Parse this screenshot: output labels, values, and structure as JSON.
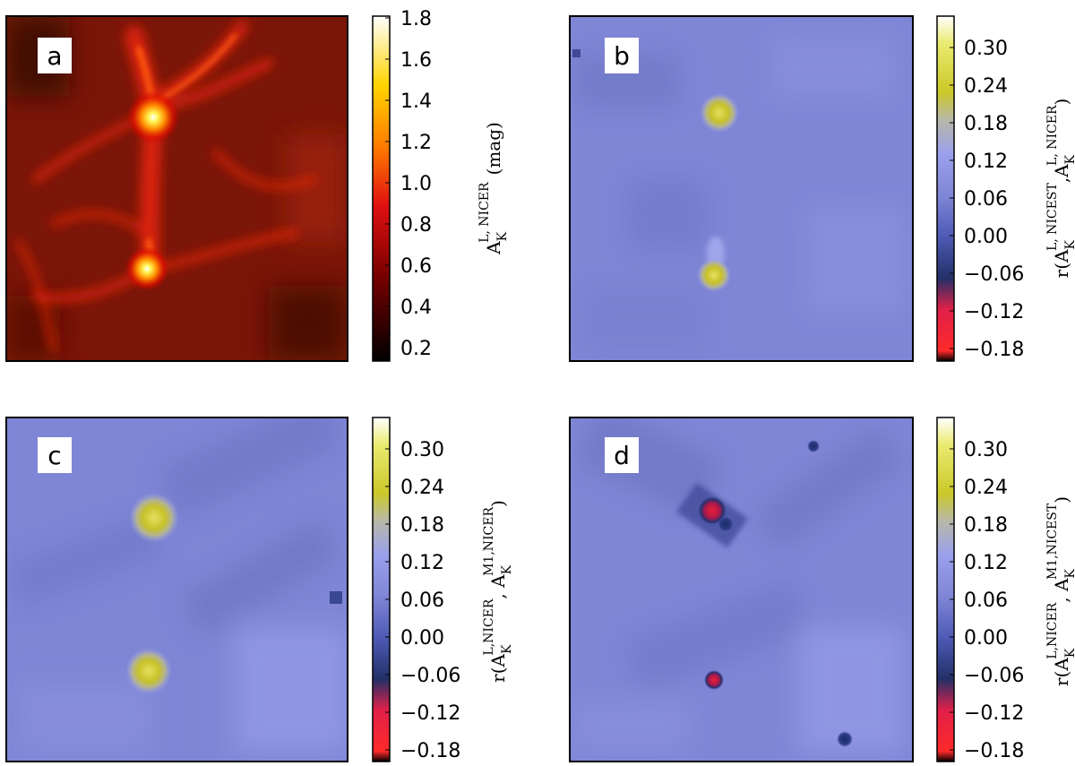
{
  "chart_data": [
    {
      "panel": "a",
      "type": "heatmap",
      "map": "extinction",
      "colormap": "hot",
      "colorbar": {
        "ticks": [
          "0.2",
          "0.4",
          "0.6",
          "0.8",
          "1.0",
          "1.2",
          "1.4",
          "1.6",
          "1.8"
        ],
        "range": [
          0.15,
          1.8
        ],
        "label": "A_K^{L, NICER} (mag)"
      },
      "features": [
        {
          "kind": "core",
          "x": 0.43,
          "y": 0.7,
          "value": 1.75
        },
        {
          "kind": "core",
          "x": 0.42,
          "y": 0.24,
          "value": 1.55
        },
        {
          "kind": "filament",
          "value": 0.9
        }
      ]
    },
    {
      "panel": "b",
      "type": "heatmap",
      "map": "correlation",
      "colormap": "gist_stern-like",
      "colorbar": {
        "ticks": [
          "0.30",
          "0.24",
          "0.18",
          "0.12",
          "0.06",
          "0.00",
          "−0.06",
          "−0.12",
          "−0.18"
        ],
        "range": [
          -0.21,
          0.34
        ],
        "label": "r(A_K^{L, NICEST}, A_K^{L, NICER})"
      },
      "background_value": 0.05,
      "features": [
        {
          "kind": "peak",
          "x": 0.44,
          "y": 0.7,
          "value": 0.22
        },
        {
          "kind": "peak",
          "x": 0.43,
          "y": 0.24,
          "value": 0.22
        }
      ]
    },
    {
      "panel": "c",
      "type": "heatmap",
      "map": "correlation",
      "colormap": "gist_stern-like",
      "colorbar": {
        "ticks": [
          "0.30",
          "0.24",
          "0.18",
          "0.12",
          "0.06",
          "0.00",
          "−0.06",
          "−0.12",
          "−0.18"
        ],
        "range": [
          -0.21,
          0.34
        ],
        "label": "r(A_K^{L,NICER}, A_K^{M1,NICER})"
      },
      "background_value": 0.05,
      "features": [
        {
          "kind": "peak",
          "x": 0.43,
          "y": 0.7,
          "value": 0.24
        },
        {
          "kind": "peak",
          "x": 0.42,
          "y": 0.22,
          "value": 0.23
        },
        {
          "kind": "dip",
          "x": 0.96,
          "y": 0.51,
          "value": -0.05
        }
      ]
    },
    {
      "panel": "d",
      "type": "heatmap",
      "map": "correlation",
      "colormap": "gist_stern-like",
      "colorbar": {
        "ticks": [
          "0.30",
          "0.24",
          "0.18",
          "0.12",
          "0.06",
          "0.00",
          "−0.06",
          "−0.12",
          "−0.18"
        ],
        "range": [
          -0.21,
          0.34
        ],
        "label": "r(A_K^{L,NICER}, A_K^{M1,NICEST})"
      },
      "background_value": 0.04,
      "features": [
        {
          "kind": "dip",
          "x": 0.42,
          "y": 0.72,
          "value": -0.16
        },
        {
          "kind": "dip",
          "x": 0.42,
          "y": 0.24,
          "value": -0.17
        },
        {
          "kind": "dip",
          "x": 0.8,
          "y": 0.07,
          "value": -0.04
        },
        {
          "kind": "dip",
          "x": 0.72,
          "y": 0.89,
          "value": -0.03
        }
      ]
    }
  ],
  "colors": {
    "corr_background": "#7f86d6",
    "frame": "#000000"
  }
}
